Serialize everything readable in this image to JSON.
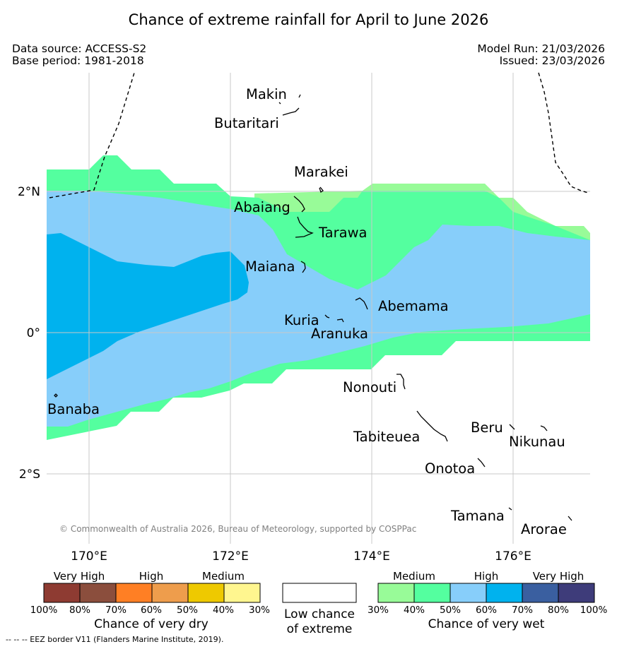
{
  "title": "Chance of extreme rainfall for April to June 2026",
  "meta": {
    "data_source": "Data source: ACCESS-S2",
    "base_period": "Base period: 1981-2018",
    "model_run": "Model Run: 21/03/2026",
    "issued": "Issued: 23/03/2026"
  },
  "map": {
    "copyright": "© Commonwealth of Australia 2026, Bureau of Meteorology, supported by COSPPac",
    "x_ticks": [
      "170°E",
      "172°E",
      "174°E",
      "176°E"
    ],
    "y_ticks": [
      "2°N",
      "0°",
      "2°S"
    ],
    "islands": [
      "Makin",
      "Butaritari",
      "Marakei",
      "Abaiang",
      "Tarawa",
      "Maiana",
      "Abemama",
      "Kuria",
      "Aranuka",
      "Nonouti",
      "Banaba",
      "Tabiteuea",
      "Beru",
      "Nikunau",
      "Onotoa",
      "Tamana",
      "Arorae"
    ]
  },
  "legend": {
    "dry": {
      "headers": [
        "Very High",
        "High",
        "Medium"
      ],
      "ticks": [
        "100%",
        "80%",
        "70%",
        "60%",
        "50%",
        "40%",
        "30%"
      ],
      "colors": [
        "#8e3b32",
        "#8b4e3d",
        "#ff7f24",
        "#ee9d4c",
        "#eec900",
        "#fff68f"
      ],
      "title": "Chance of very dry"
    },
    "low": {
      "line1": "Low chance",
      "line2": "of extreme"
    },
    "wet": {
      "headers": [
        "Medium",
        "High",
        "Very High"
      ],
      "ticks": [
        "30%",
        "40%",
        "50%",
        "60%",
        "70%",
        "80%",
        "100%"
      ],
      "colors": [
        "#98fb98",
        "#54ff9f",
        "#87cefa",
        "#00b2ee",
        "#3a5fa0",
        "#3e3c7a"
      ],
      "title": "Chance of very wet"
    }
  },
  "footnote": "--  --  -- EEZ border V11 (Flanders Marine Institute, 2019)."
}
